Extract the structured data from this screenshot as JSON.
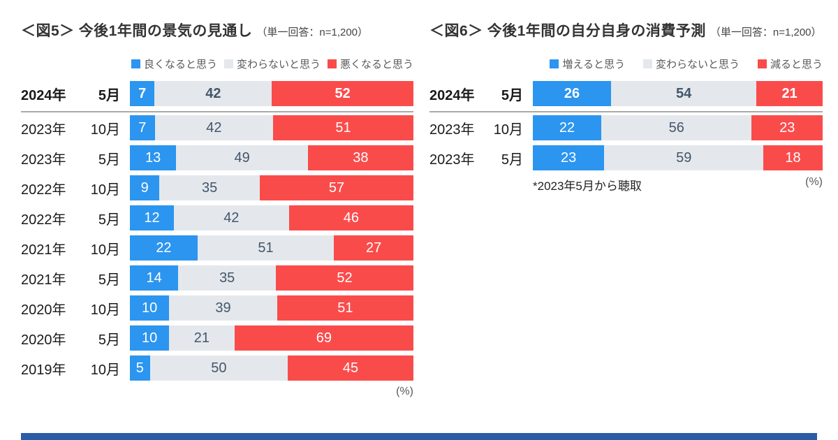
{
  "colors": {
    "series": [
      "#2b95f0",
      "#e4e8ec",
      "#fa4b4b"
    ],
    "value_on_light": "#44566b",
    "value_on_dark": "#ffffff",
    "separator": "#a9a9a9",
    "footer_bar": "#2b5ca8"
  },
  "chart_data": [
    {
      "type": "bar",
      "orientation": "horizontal-stacked",
      "tag": "＜図5＞",
      "title": "今後1年間の景気の見通し",
      "subtitle": "（単一回答：n=1,200）",
      "legend": [
        "良くなると思う",
        "変わらないと思う",
        "悪くなると思う"
      ],
      "unit": "(%)",
      "note": "",
      "xlim": [
        0,
        100
      ],
      "categories": [
        "2024年 5月",
        "2023年 10月",
        "2023年 5月",
        "2022年 10月",
        "2022年 5月",
        "2021年 10月",
        "2021年 5月",
        "2020年 10月",
        "2020年 5月",
        "2019年 10月"
      ],
      "rows": [
        {
          "year": "2024年",
          "month": "5月",
          "values": [
            7,
            42,
            52
          ],
          "bold": true,
          "separator_after": true
        },
        {
          "year": "2023年",
          "month": "10月",
          "values": [
            7,
            42,
            51
          ],
          "bold": false,
          "separator_after": false
        },
        {
          "year": "2023年",
          "month": "5月",
          "values": [
            13,
            49,
            38
          ],
          "bold": false,
          "separator_after": false
        },
        {
          "year": "2022年",
          "month": "10月",
          "values": [
            9,
            35,
            57
          ],
          "bold": false,
          "separator_after": false
        },
        {
          "year": "2022年",
          "month": "5月",
          "values": [
            12,
            42,
            46
          ],
          "bold": false,
          "separator_after": false
        },
        {
          "year": "2021年",
          "month": "10月",
          "values": [
            22,
            51,
            27
          ],
          "bold": false,
          "separator_after": false
        },
        {
          "year": "2021年",
          "month": "5月",
          "values": [
            14,
            35,
            52
          ],
          "bold": false,
          "separator_after": false
        },
        {
          "year": "2020年",
          "month": "10月",
          "values": [
            10,
            39,
            51
          ],
          "bold": false,
          "separator_after": false
        },
        {
          "year": "2020年",
          "month": "5月",
          "values": [
            10,
            21,
            69
          ],
          "bold": false,
          "separator_after": false
        },
        {
          "year": "2019年",
          "month": "10月",
          "values": [
            5,
            50,
            45
          ],
          "bold": false,
          "separator_after": false
        }
      ]
    },
    {
      "type": "bar",
      "orientation": "horizontal-stacked",
      "tag": "＜図6＞",
      "title": "今後1年間の自分自身の消費予測",
      "subtitle": "（単一回答：n=1,200）",
      "legend": [
        "増えると思う",
        "変わらないと思う",
        "減ると思う"
      ],
      "unit": "(%)",
      "note": "*2023年5月から聴取",
      "xlim": [
        0,
        100
      ],
      "categories": [
        "2024年 5月",
        "2023年 10月",
        "2023年 5月"
      ],
      "rows": [
        {
          "year": "2024年",
          "month": "5月",
          "values": [
            26,
            54,
            21
          ],
          "bold": true,
          "separator_after": true
        },
        {
          "year": "2023年",
          "month": "10月",
          "values": [
            22,
            56,
            23
          ],
          "bold": false,
          "separator_after": false
        },
        {
          "year": "2023年",
          "month": "5月",
          "values": [
            23,
            59,
            18
          ],
          "bold": false,
          "separator_after": false
        }
      ]
    }
  ]
}
